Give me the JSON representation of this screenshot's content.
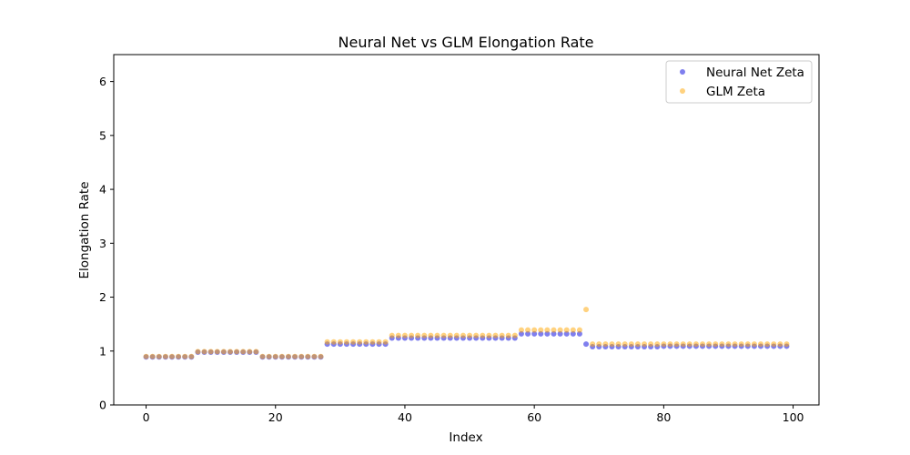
{
  "chart_data": {
    "type": "scatter",
    "title": "Neural Net vs GLM Elongation Rate",
    "xlabel": "Index",
    "ylabel": "Elongation Rate",
    "xlim": [
      -5,
      104
    ],
    "ylim": [
      0,
      6.5
    ],
    "xticks": [
      0,
      20,
      40,
      60,
      80,
      100
    ],
    "yticks": [
      0,
      1,
      2,
      3,
      4,
      5,
      6
    ],
    "grid": false,
    "legend_position": "top-right",
    "series": [
      {
        "name": "Neural Net Zeta",
        "color": "#0000dd",
        "segments": [
          {
            "start": 0,
            "end": 7,
            "value": 0.89
          },
          {
            "start": 8,
            "end": 17,
            "value": 0.98
          },
          {
            "start": 18,
            "end": 27,
            "value": 0.89
          },
          {
            "start": 28,
            "end": 37,
            "value": 1.13
          },
          {
            "start": 38,
            "end": 57,
            "value": 1.24
          },
          {
            "start": 58,
            "end": 67,
            "value": 1.32
          },
          {
            "start": 68,
            "end": 68,
            "value": 1.13
          },
          {
            "start": 69,
            "end": 79,
            "value": 1.08
          },
          {
            "start": 80,
            "end": 99,
            "value": 1.09
          }
        ]
      },
      {
        "name": "GLM Zeta",
        "color": "#ffa500",
        "segments": [
          {
            "start": 0,
            "end": 7,
            "value": 0.9
          },
          {
            "start": 8,
            "end": 17,
            "value": 0.99
          },
          {
            "start": 18,
            "end": 27,
            "value": 0.9
          },
          {
            "start": 28,
            "end": 37,
            "value": 1.17
          },
          {
            "start": 38,
            "end": 57,
            "value": 1.29
          },
          {
            "start": 58,
            "end": 67,
            "value": 1.39
          },
          {
            "start": 68,
            "end": 68,
            "value": 1.77
          },
          {
            "start": 69,
            "end": 99,
            "value": 1.13
          }
        ]
      }
    ]
  }
}
